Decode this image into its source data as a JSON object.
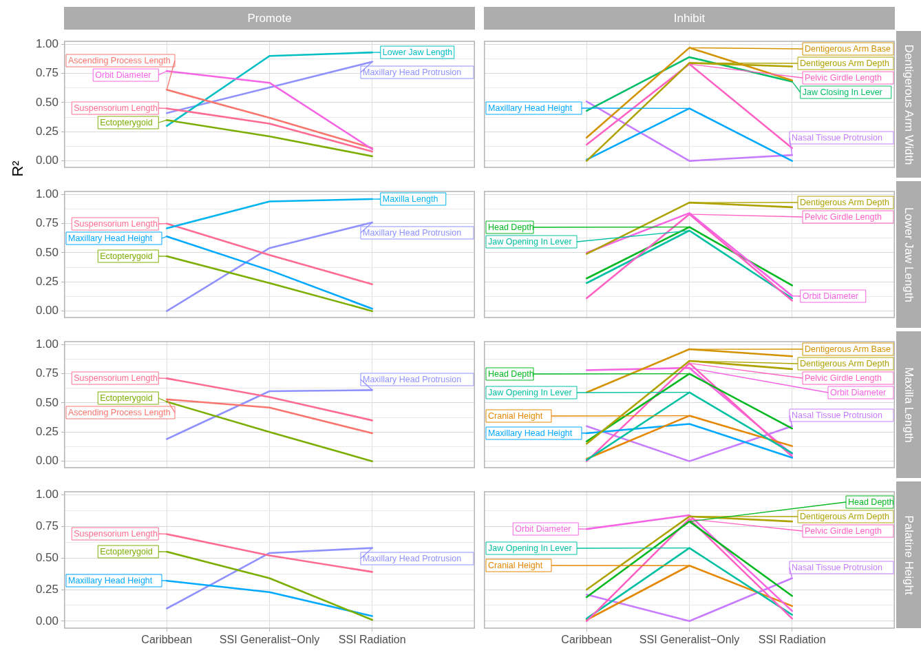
{
  "chart_data": [
    {
      "type": "line",
      "title": "Promote",
      "ylabel": "R²",
      "categories": [
        "Caribbean",
        "SSI Generalist−Only",
        "SSI Radiation"
      ],
      "ylim": [
        -0.06,
        1.03
      ],
      "yticks": [
        {
          "value": 0,
          "label": "0.00"
        },
        {
          "value": 0.125,
          "label": null
        },
        {
          "value": 0.25,
          "label": "0.25"
        },
        {
          "value": 0.375,
          "label": null
        },
        {
          "value": 0.5,
          "label": "0.50"
        },
        {
          "value": 0.625,
          "label": null
        },
        {
          "value": 0.75,
          "label": "0.75"
        },
        {
          "value": 0.875,
          "label": null
        },
        {
          "value": 1,
          "label": "1.00"
        }
      ],
      "grid": true,
      "tick_labels": "y",
      "series": [
        {
          "color": "#f564e3",
          "values": [
            0.77,
            0.67,
            0.1
          ]
        },
        {
          "color": "#f8766d",
          "values": [
            0.61,
            0.37,
            0.11
          ]
        },
        {
          "color": "#ff6c91",
          "values": [
            0.45,
            0.32,
            0.08
          ]
        },
        {
          "color": "#7cae00",
          "values": [
            0.35,
            0.21,
            0.04
          ]
        },
        {
          "color": "#00bfc4",
          "values": [
            0.3,
            0.9,
            0.93
          ]
        },
        {
          "color": "#8f91ff",
          "values": [
            0.41,
            0.63,
            0.85
          ]
        }
      ],
      "annotations": [
        {
          "text": "Orbit Diameter",
          "x": "Caribbean",
          "y": 0.77
        },
        {
          "text": "Ascending Process Length",
          "x": "Caribbean",
          "y": 0.61
        },
        {
          "text": "Suspensorium Length",
          "x": "Caribbean",
          "y": 0.45
        },
        {
          "text": "Ectopterygoid",
          "x": "Caribbean",
          "y": 0.35
        },
        {
          "text": "Lower Jaw Length",
          "x": "SSI Radiation",
          "y": 0.93
        },
        {
          "text": "Maxillary Head Protrusion",
          "x": "SSI Radiation",
          "y": 0.85
        }
      ]
    },
    {
      "type": "line",
      "title": "Inhibit",
      "y2label": "Dentigerous Arm Width",
      "categories": [
        "Caribbean",
        "SSI Generalist−Only",
        "SSI Radiation"
      ],
      "ylim": [
        -0.06,
        1.03
      ],
      "yticks": [
        {
          "value": 0,
          "label": "0.00"
        },
        {
          "value": 0.125,
          "label": null
        },
        {
          "value": 0.25,
          "label": "0.25"
        },
        {
          "value": 0.375,
          "label": null
        },
        {
          "value": 0.5,
          "label": "0.50"
        },
        {
          "value": 0.625,
          "label": null
        },
        {
          "value": 0.75,
          "label": "0.75"
        },
        {
          "value": 0.875,
          "label": null
        },
        {
          "value": 1,
          "label": "1.00"
        }
      ],
      "grid": true,
      "tick_labels": false,
      "series": [
        {
          "color": "#d39200",
          "values": [
            0.2,
            0.97,
            0.69
          ]
        },
        {
          "color": "#aea200",
          "values": [
            0.0,
            0.84,
            0.81
          ]
        },
        {
          "color": "#00be67",
          "values": [
            0.43,
            0.89,
            0.68
          ]
        },
        {
          "color": "#ff61c3",
          "values": [
            0.14,
            0.83,
            0.11
          ]
        },
        {
          "color": "#00a9ff",
          "values": [
            0.01,
            0.45,
            0.0
          ]
        },
        {
          "color": "#c77cff",
          "values": [
            0.51,
            0.0,
            0.05
          ]
        }
      ],
      "annotations": [
        {
          "text": "Dentigerous Arm Base",
          "x": "SSI Generalist−Only",
          "y": 0.97
        },
        {
          "text": "Dentigerous Arm Depth",
          "x": "SSI Generalist−Only",
          "y": 0.84
        },
        {
          "text": "Pelvic Girdle Length",
          "x": "SSI Generalist−Only",
          "y": 0.83
        },
        {
          "text": "Maxillary Head Height",
          "x": "SSI Generalist−Only",
          "y": 0.45
        },
        {
          "text": "Jaw Closing In Lever",
          "x": "SSI Radiation",
          "y": 0.68
        },
        {
          "text": "Nasal Tissue Protrusion",
          "x": "SSI Radiation",
          "y": 0.05
        }
      ]
    },
    {
      "type": "line",
      "categories": [
        "Caribbean",
        "SSI Generalist−Only",
        "SSI Radiation"
      ],
      "ylim": [
        -0.06,
        1.03
      ],
      "yticks": [
        {
          "value": 0,
          "label": "0.00"
        },
        {
          "value": 0.125,
          "label": null
        },
        {
          "value": 0.25,
          "label": "0.25"
        },
        {
          "value": 0.375,
          "label": null
        },
        {
          "value": 0.5,
          "label": "0.50"
        },
        {
          "value": 0.625,
          "label": null
        },
        {
          "value": 0.75,
          "label": "0.75"
        },
        {
          "value": 0.875,
          "label": null
        },
        {
          "value": 1,
          "label": "1.00"
        }
      ],
      "grid": true,
      "tick_labels": "y",
      "series": [
        {
          "color": "#00b4ef",
          "values": [
            0.71,
            0.94,
            0.96
          ]
        },
        {
          "color": "#ff6c91",
          "values": [
            0.75,
            0.48,
            0.23
          ]
        },
        {
          "color": "#00a9ff",
          "values": [
            0.64,
            0.35,
            0.02
          ]
        },
        {
          "color": "#7cae00",
          "values": [
            0.47,
            0.24,
            0.0
          ]
        },
        {
          "color": "#8f91ff",
          "values": [
            0.0,
            0.54,
            0.76
          ]
        }
      ],
      "annotations": [
        {
          "text": "Maxilla Length",
          "x": "SSI Radiation",
          "y": 0.96
        },
        {
          "text": "Suspensorium Length",
          "x": "Caribbean",
          "y": 0.75
        },
        {
          "text": "Maxillary Head Protrusion",
          "x": "SSI Radiation",
          "y": 0.76
        },
        {
          "text": "Maxillary Head Height",
          "x": "Caribbean",
          "y": 0.64
        },
        {
          "text": "Ectopterygoid",
          "x": "Caribbean",
          "y": 0.47
        }
      ]
    },
    {
      "type": "line",
      "y2label": "Lower Jaw Length",
      "categories": [
        "Caribbean",
        "SSI Generalist−Only",
        "SSI Radiation"
      ],
      "ylim": [
        -0.06,
        1.03
      ],
      "yticks": [
        {
          "value": 0,
          "label": "0.00"
        },
        {
          "value": 0.125,
          "label": null
        },
        {
          "value": 0.25,
          "label": "0.25"
        },
        {
          "value": 0.375,
          "label": null
        },
        {
          "value": 0.5,
          "label": "0.50"
        },
        {
          "value": 0.625,
          "label": null
        },
        {
          "value": 0.75,
          "label": "0.75"
        },
        {
          "value": 0.875,
          "label": null
        },
        {
          "value": 1,
          "label": "1.00"
        }
      ],
      "grid": true,
      "tick_labels": false,
      "series": [
        {
          "color": "#aea200",
          "values": [
            0.49,
            0.93,
            0.89
          ]
        },
        {
          "color": "#f564e3",
          "values": [
            0.5,
            0.84,
            0.13
          ]
        },
        {
          "color": "#ff61c3",
          "values": [
            0.11,
            0.83,
            0.09
          ]
        },
        {
          "color": "#00b81f",
          "values": [
            0.28,
            0.72,
            0.22
          ]
        },
        {
          "color": "#00c0a3",
          "values": [
            0.24,
            0.69,
            0.11
          ]
        }
      ],
      "annotations": [
        {
          "text": "Dentigerous Arm Depth",
          "x": "SSI Generalist−Only",
          "y": 0.93
        },
        {
          "text": "Head Depth",
          "x": "SSI Generalist−Only",
          "y": 0.72
        },
        {
          "text": "Pelvic Girdle Length",
          "x": "SSI Generalist−Only",
          "y": 0.83
        },
        {
          "text": "Jaw Opening In Lever",
          "x": "SSI Generalist−Only",
          "y": 0.69
        },
        {
          "text": "Orbit Diameter",
          "x": "SSI Radiation",
          "y": 0.13
        }
      ]
    },
    {
      "type": "line",
      "categories": [
        "Caribbean",
        "SSI Generalist−Only",
        "SSI Radiation"
      ],
      "ylim": [
        -0.06,
        1.03
      ],
      "yticks": [
        {
          "value": 0,
          "label": "0.00"
        },
        {
          "value": 0.125,
          "label": null
        },
        {
          "value": 0.25,
          "label": "0.25"
        },
        {
          "value": 0.375,
          "label": null
        },
        {
          "value": 0.5,
          "label": "0.50"
        },
        {
          "value": 0.625,
          "label": null
        },
        {
          "value": 0.75,
          "label": "0.75"
        },
        {
          "value": 0.875,
          "label": null
        },
        {
          "value": 1,
          "label": "1.00"
        }
      ],
      "grid": true,
      "tick_labels": "y",
      "series": [
        {
          "color": "#ff6c91",
          "values": [
            0.71,
            0.55,
            0.35
          ]
        },
        {
          "color": "#f8766d",
          "values": [
            0.53,
            0.46,
            0.24
          ]
        },
        {
          "color": "#7cae00",
          "values": [
            0.51,
            0.25,
            0.0
          ]
        },
        {
          "color": "#8f91ff",
          "values": [
            0.19,
            0.6,
            0.61
          ]
        }
      ],
      "annotations": [
        {
          "text": "Suspensorium Length",
          "x": "Caribbean",
          "y": 0.71
        },
        {
          "text": "Maxillary Head Protrusion",
          "x": "SSI Radiation",
          "y": 0.61
        },
        {
          "text": "Ascending Process Length",
          "x": "Caribbean",
          "y": 0.53
        },
        {
          "text": "Ectopterygoid",
          "x": "Caribbean",
          "y": 0.51
        }
      ]
    },
    {
      "type": "line",
      "y2label": "Maxilla Length",
      "categories": [
        "Caribbean",
        "SSI Generalist−Only",
        "SSI Radiation"
      ],
      "ylim": [
        -0.06,
        1.03
      ],
      "yticks": [
        {
          "value": 0,
          "label": "0.00"
        },
        {
          "value": 0.125,
          "label": null
        },
        {
          "value": 0.25,
          "label": "0.25"
        },
        {
          "value": 0.375,
          "label": null
        },
        {
          "value": 0.5,
          "label": "0.50"
        },
        {
          "value": 0.625,
          "label": null
        },
        {
          "value": 0.75,
          "label": "0.75"
        },
        {
          "value": 0.875,
          "label": null
        },
        {
          "value": 1,
          "label": "1.00"
        }
      ],
      "grid": true,
      "tick_labels": false,
      "series": [
        {
          "color": "#d39200",
          "values": [
            0.59,
            0.96,
            0.9
          ]
        },
        {
          "color": "#aea200",
          "values": [
            0.15,
            0.86,
            0.79
          ]
        },
        {
          "color": "#00b81f",
          "values": [
            0.17,
            0.75,
            0.28
          ]
        },
        {
          "color": "#00c0a3",
          "values": [
            0.01,
            0.59,
            0.07
          ]
        },
        {
          "color": "#e58700",
          "values": [
            0.02,
            0.39,
            0.13
          ]
        },
        {
          "color": "#00a9ff",
          "values": [
            0.24,
            0.32,
            0.03
          ]
        },
        {
          "color": "#ff61c3",
          "values": [
            0.0,
            0.84,
            0.04
          ]
        },
        {
          "color": "#f564e3",
          "values": [
            0.78,
            0.8,
            0.06
          ]
        },
        {
          "color": "#c77cff",
          "values": [
            0.3,
            0.0,
            0.3
          ]
        }
      ],
      "annotations": [
        {
          "text": "Dentigerous Arm Base",
          "x": "SSI Generalist−Only",
          "y": 0.96
        },
        {
          "text": "Dentigerous Arm Depth",
          "x": "SSI Generalist−Only",
          "y": 0.86
        },
        {
          "text": "Head Depth",
          "x": "SSI Generalist−Only",
          "y": 0.75
        },
        {
          "text": "Pelvic Girdle Length",
          "x": "SSI Generalist−Only",
          "y": 0.84
        },
        {
          "text": "Jaw Opening In Lever",
          "x": "SSI Generalist−Only",
          "y": 0.59
        },
        {
          "text": "Orbit Diameter",
          "x": "SSI Generalist−Only",
          "y": 0.8
        },
        {
          "text": "Cranial Height",
          "x": "SSI Generalist−Only",
          "y": 0.39
        },
        {
          "text": "Maxillary Head Height",
          "x": "Caribbean",
          "y": 0.24
        },
        {
          "text": "Nasal Tissue Protrusion",
          "x": "SSI Radiation",
          "y": 0.3
        }
      ]
    },
    {
      "type": "line",
      "categories": [
        "Caribbean",
        "SSI Generalist−Only",
        "SSI Radiation"
      ],
      "ylim": [
        -0.06,
        1.03
      ],
      "yticks": [
        {
          "value": 0,
          "label": "0.00"
        },
        {
          "value": 0.125,
          "label": null
        },
        {
          "value": 0.25,
          "label": "0.25"
        },
        {
          "value": 0.375,
          "label": null
        },
        {
          "value": 0.5,
          "label": "0.50"
        },
        {
          "value": 0.625,
          "label": null
        },
        {
          "value": 0.75,
          "label": "0.75"
        },
        {
          "value": 0.875,
          "label": null
        },
        {
          "value": 1,
          "label": "1.00"
        }
      ],
      "grid": true,
      "series": [
        {
          "color": "#ff6c91",
          "values": [
            0.69,
            0.52,
            0.39
          ]
        },
        {
          "color": "#7cae00",
          "values": [
            0.55,
            0.34,
            0.01
          ]
        },
        {
          "color": "#00a9ff",
          "values": [
            0.32,
            0.23,
            0.04
          ]
        },
        {
          "color": "#8f91ff",
          "values": [
            0.1,
            0.54,
            0.58
          ]
        }
      ],
      "annotations": [
        {
          "text": "Suspensorium Length",
          "x": "Caribbean",
          "y": 0.69
        },
        {
          "text": "Maxillary Head Protrusion",
          "x": "SSI Radiation",
          "y": 0.58
        },
        {
          "text": "Ectopterygoid",
          "x": "Caribbean",
          "y": 0.55
        },
        {
          "text": "Maxillary Head Height",
          "x": "Caribbean",
          "y": 0.32
        }
      ]
    },
    {
      "type": "line",
      "y2label": "Palatine Height",
      "categories": [
        "Caribbean",
        "SSI Generalist−Only",
        "SSI Radiation"
      ],
      "ylim": [
        -0.06,
        1.03
      ],
      "yticks": [
        {
          "value": 0,
          "label": "0.00"
        },
        {
          "value": 0.125,
          "label": null
        },
        {
          "value": 0.25,
          "label": "0.25"
        },
        {
          "value": 0.375,
          "label": null
        },
        {
          "value": 0.5,
          "label": "0.50"
        },
        {
          "value": 0.625,
          "label": null
        },
        {
          "value": 0.75,
          "label": "0.75"
        },
        {
          "value": 0.875,
          "label": null
        },
        {
          "value": 1,
          "label": "1.00"
        }
      ],
      "grid": true,
      "tick_labels": "x",
      "series": [
        {
          "color": "#aea200",
          "values": [
            0.25,
            0.83,
            0.79
          ]
        },
        {
          "color": "#00b81f",
          "values": [
            0.19,
            0.79,
            0.2
          ]
        },
        {
          "color": "#f564e3",
          "values": [
            0.73,
            0.84,
            0.08
          ]
        },
        {
          "color": "#ff61c3",
          "values": [
            0.0,
            0.81,
            0.02
          ]
        },
        {
          "color": "#00c0a3",
          "values": [
            0.02,
            0.58,
            0.05
          ]
        },
        {
          "color": "#e58700",
          "values": [
            0.01,
            0.44,
            0.12
          ]
        },
        {
          "color": "#c77cff",
          "values": [
            0.21,
            0.0,
            0.34
          ]
        }
      ],
      "annotations": [
        {
          "text": "Dentigerous Arm Depth",
          "x": "SSI Generalist−Only",
          "y": 0.83
        },
        {
          "text": "Orbit Diameter",
          "x": "Caribbean",
          "y": 0.73
        },
        {
          "text": "Pelvic Girdle Length",
          "x": "SSI Generalist−Only",
          "y": 0.81
        },
        {
          "text": "Jaw Opening In Lever",
          "x": "SSI Generalist−Only",
          "y": 0.58
        },
        {
          "text": "Head Depth",
          "x": "SSI Generalist−Only",
          "y": 0.79
        },
        {
          "text": "Cranial Height",
          "x": "SSI Generalist−Only",
          "y": 0.44
        },
        {
          "text": "Nasal Tissue Protrusion",
          "x": "SSI Radiation",
          "y": 0.34
        }
      ]
    }
  ]
}
